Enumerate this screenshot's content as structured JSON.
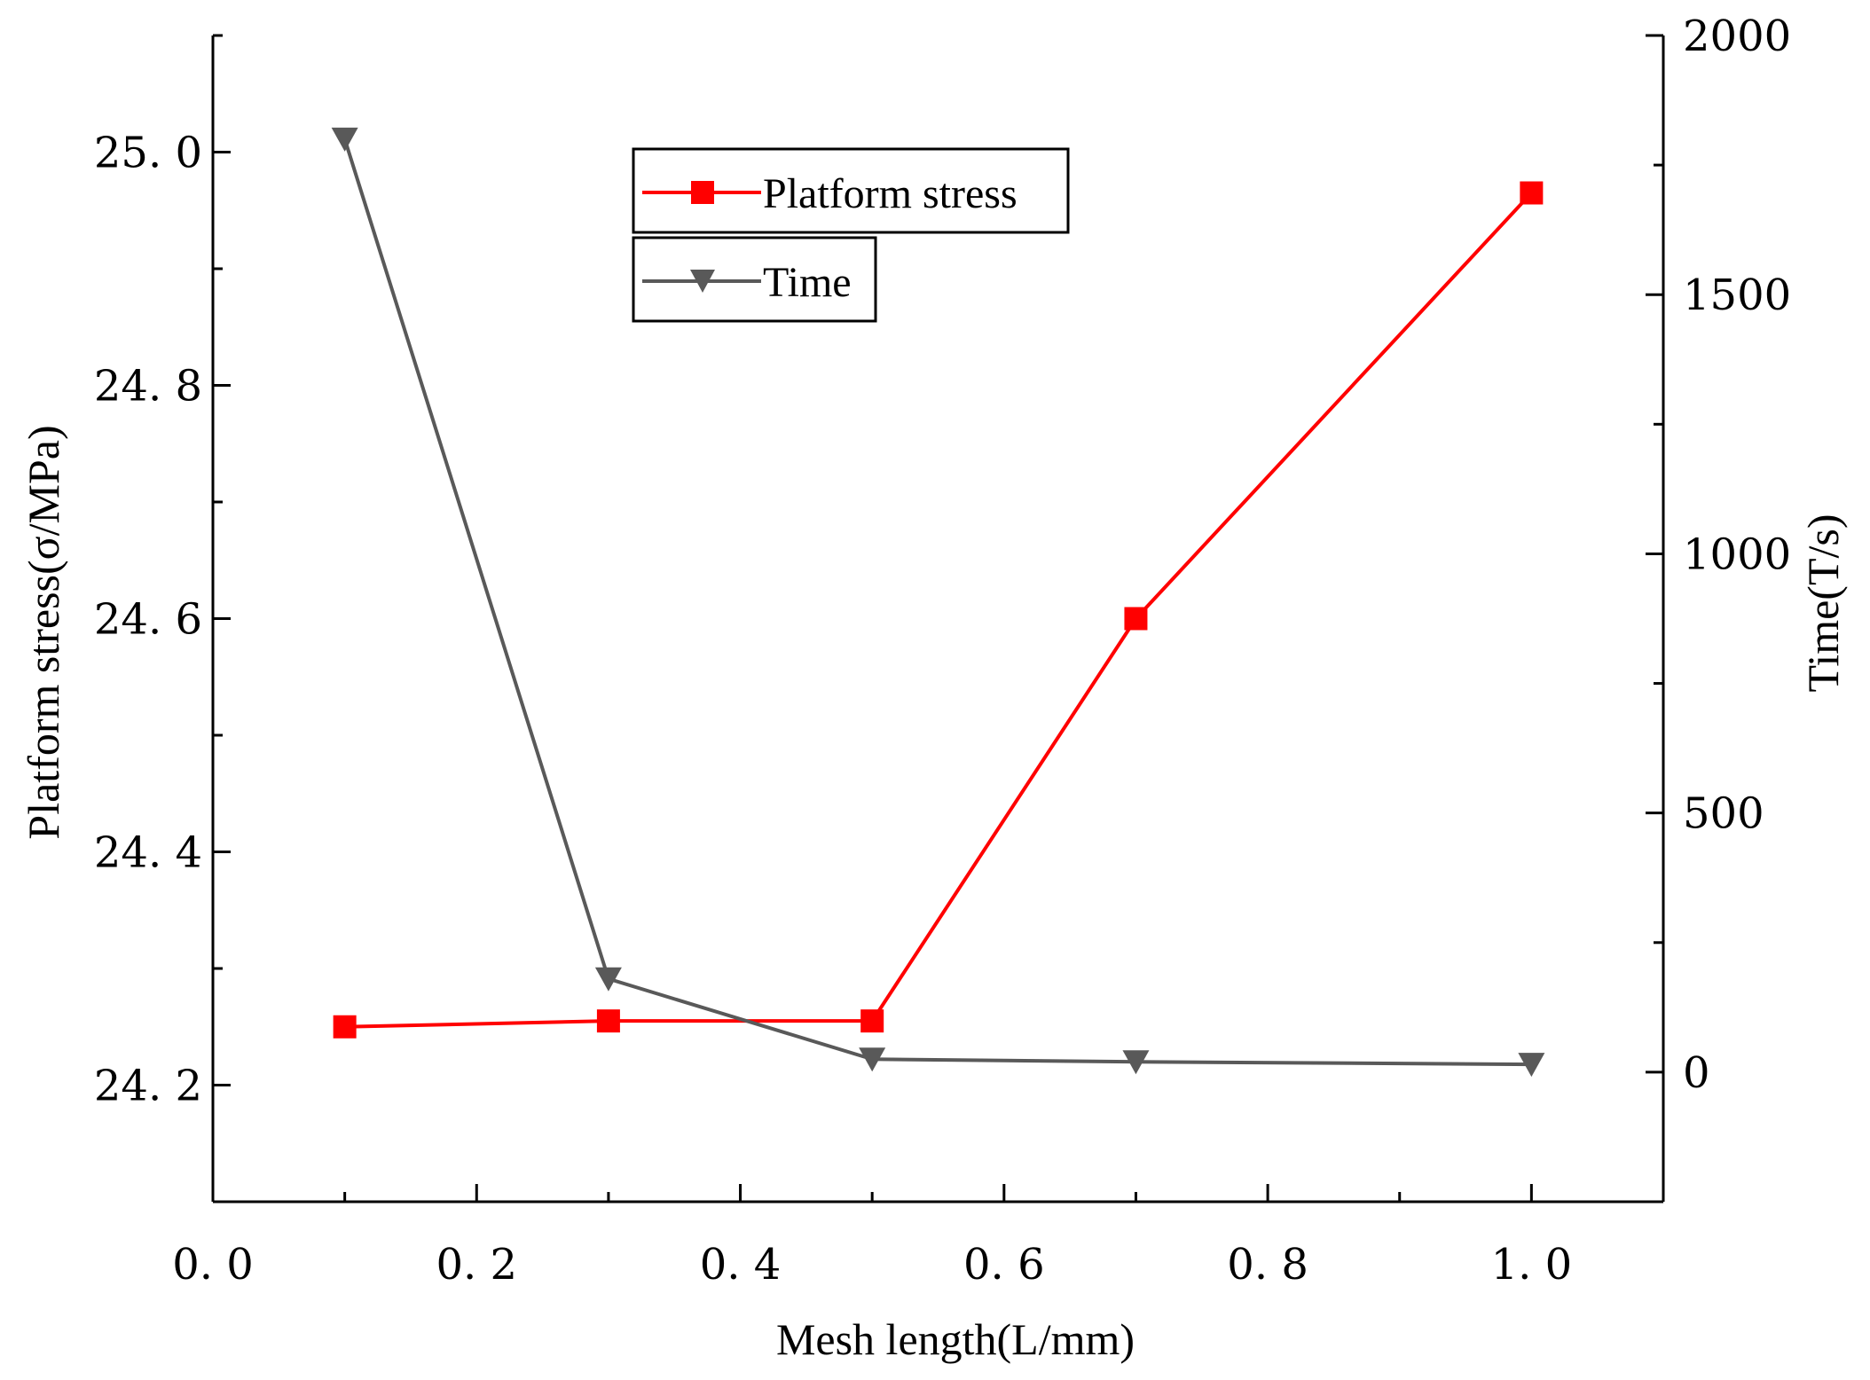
{
  "chart_data": {
    "type": "line",
    "xlabel": "Mesh length(L/mm)",
    "ylabel_left": "Platform stress(σ/MPa)",
    "ylabel_right": "Time(T/s)",
    "xlim": [
      0.0,
      1.1
    ],
    "ylim_left": [
      24.1,
      25.1
    ],
    "ylim_right": [
      -250,
      2000
    ],
    "x_ticks": [
      0.0,
      0.2,
      0.4,
      0.6,
      0.8,
      1.0
    ],
    "x_tick_labels": [
      "0. 0",
      "0. 2",
      "0. 4",
      "0. 6",
      "0. 8",
      "1. 0"
    ],
    "y_left_ticks": [
      24.2,
      24.4,
      24.6,
      24.8,
      25.0
    ],
    "y_left_tick_labels": [
      "24. 2",
      "24. 4",
      "24. 6",
      "24. 8",
      "25. 0"
    ],
    "y_right_ticks": [
      0,
      500,
      1000,
      1500,
      2000
    ],
    "y_right_tick_labels": [
      "0",
      "500",
      "1000",
      "1500",
      "2000"
    ],
    "grid": false,
    "x": [
      0.1,
      0.3,
      0.5,
      0.7,
      1.0
    ],
    "series": [
      {
        "name": "Platform stress",
        "axis": "left",
        "color": "#ff0000",
        "marker": "square",
        "values": [
          24.25,
          24.255,
          24.255,
          24.6,
          24.965
        ]
      },
      {
        "name": "Time",
        "axis": "right",
        "color": "#595959",
        "marker": "triangle-down",
        "values": [
          1800,
          180,
          25,
          20,
          15
        ]
      }
    ],
    "legend": [
      "Platform stress",
      "Time"
    ],
    "legend_position": "top-center"
  }
}
